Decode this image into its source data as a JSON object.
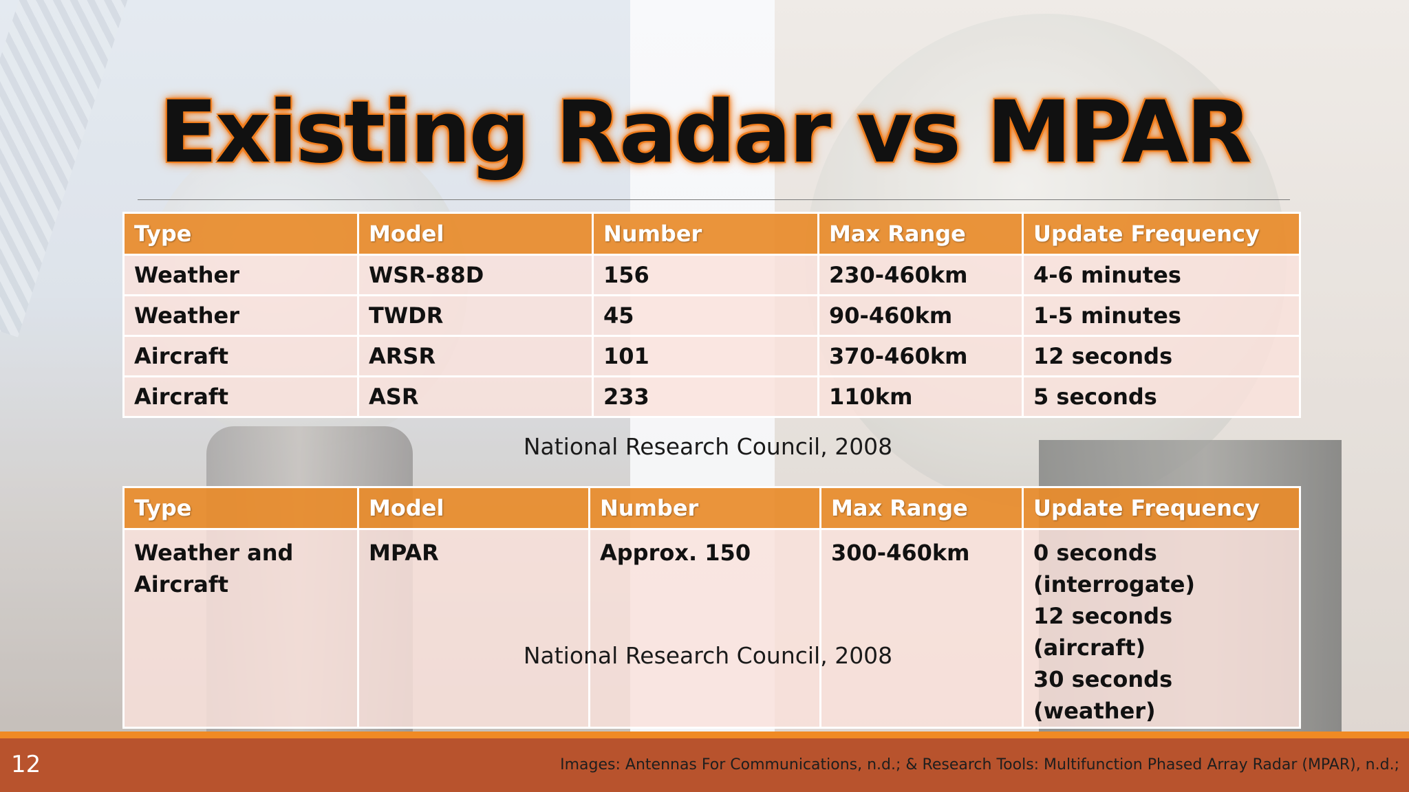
{
  "slide": {
    "title": "Existing Radar vs MPAR",
    "number": "12",
    "image_credits": "Images: Antennas For Communications, n.d.; & Research Tools: Multifunction Phased Array Radar (MPAR), n.d.;"
  },
  "table1": {
    "headers": [
      "Type",
      "Model",
      "Number",
      "Max Range",
      "Update Frequency"
    ],
    "rows": [
      [
        "Weather",
        "WSR-88D",
        "156",
        "230-460km",
        "4-6 minutes"
      ],
      [
        "Weather",
        "TWDR",
        "45",
        "90-460km",
        "1-5 minutes"
      ],
      [
        "Aircraft",
        "ARSR",
        "101",
        "370-460km",
        "12 seconds"
      ],
      [
        "Aircraft",
        "ASR",
        "233",
        "110km",
        "5 seconds"
      ]
    ],
    "source": "National Research Council, 2008"
  },
  "table2": {
    "headers": [
      "Type",
      "Model",
      "Number",
      "Max Range",
      "Update Frequency"
    ],
    "row": {
      "type_lines": [
        "Weather and",
        "Aircraft"
      ],
      "model": "MPAR",
      "number": "Approx. 150",
      "max_range": "300-460km",
      "update_lines": [
        "0 seconds (interrogate)",
        "12 seconds (aircraft)",
        "30 seconds (weather)"
      ]
    },
    "source": "National Research Council, 2008"
  },
  "colors": {
    "header_orange": "#e88b2a",
    "row_pink": "#fae2dc",
    "footer_bar": "#b8532d",
    "footer_accent": "#f08a24",
    "title_glow": "#f07a1a"
  }
}
